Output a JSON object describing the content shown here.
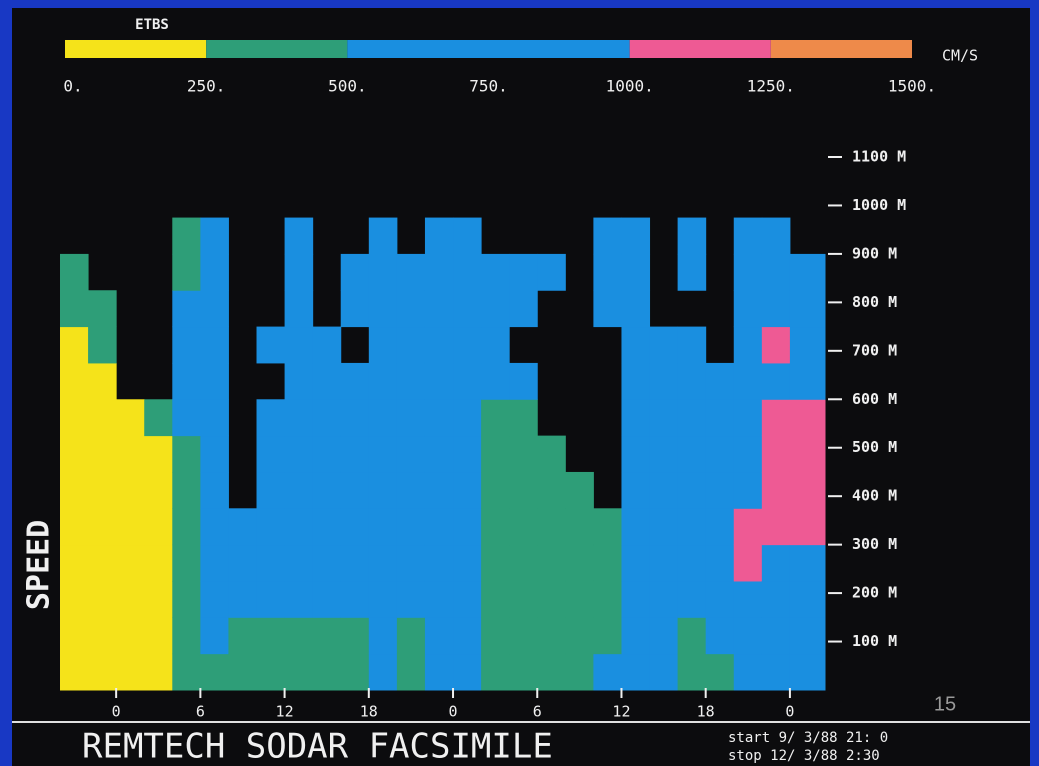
{
  "chart_data": {
    "type": "heatmap",
    "colorbar": {
      "title": "ETBS",
      "unit": "CM/S",
      "bounds": [
        0,
        250,
        500,
        1000,
        1250,
        1500
      ],
      "colors": [
        "#f5e31a",
        "#2e9e78",
        "#1a8fe0",
        "#ee5a94",
        "#ee8a4a"
      ],
      "ticks": [
        {
          "value": 0,
          "label": "0."
        },
        {
          "value": 250,
          "label": "250."
        },
        {
          "value": 500,
          "label": "500."
        },
        {
          "value": 750,
          "label": "750."
        },
        {
          "value": 1000,
          "label": "1000."
        },
        {
          "value": 1250,
          "label": "1250."
        },
        {
          "value": 1500,
          "label": "1500."
        }
      ]
    },
    "ylabel": "SPEED",
    "title": "REMTECH SODAR FACSIMILE",
    "start_label": "start  9/ 3/88 21: 0",
    "stop_label": "stop  12/ 3/88  2:30",
    "slide_number": "15",
    "xlim": [
      -4,
      50.5
    ],
    "xticks": [
      0,
      6,
      12,
      18,
      {
        "value": 24,
        "label": "0"
      },
      {
        "value": 30,
        "label": "6"
      },
      {
        "value": 36,
        "label": "12"
      },
      {
        "value": 42,
        "label": "18"
      },
      {
        "value": 48,
        "label": "0"
      }
    ],
    "ylim": [
      0,
      1100
    ],
    "yticks": [
      {
        "value": 100,
        "label": "100 M"
      },
      {
        "value": 200,
        "label": "200 M"
      },
      {
        "value": 300,
        "label": "300 M"
      },
      {
        "value": 400,
        "label": "400 M"
      },
      {
        "value": 500,
        "label": "500 M"
      },
      {
        "value": 600,
        "label": "600 M"
      },
      {
        "value": 700,
        "label": "700 M"
      },
      {
        "value": 800,
        "label": "800 M"
      },
      {
        "value": 900,
        "label": "900 M"
      },
      {
        "value": 1000,
        "label": "1000 M"
      },
      {
        "value": 1100,
        "label": "1100 M"
      }
    ],
    "x": [
      -4,
      -2,
      0,
      2,
      4,
      6,
      8,
      10,
      12,
      14,
      16,
      18,
      20,
      22,
      24,
      26,
      28,
      30,
      32,
      34,
      36,
      38,
      40,
      42,
      44,
      46,
      48
    ],
    "y": [
      0,
      75,
      150,
      225,
      300,
      375,
      450,
      525,
      600,
      675,
      750,
      825,
      900,
      975
    ],
    "z": [
      [
        125,
        125,
        125,
        125,
        125,
        125,
        125,
        125,
        125,
        125,
        375,
        375,
        null,
        null
      ],
      [
        125,
        125,
        125,
        125,
        125,
        125,
        125,
        125,
        125,
        375,
        375,
        null,
        null,
        null
      ],
      [
        125,
        125,
        125,
        125,
        125,
        125,
        125,
        125,
        null,
        null,
        null,
        null,
        null,
        null
      ],
      [
        125,
        125,
        125,
        125,
        125,
        125,
        125,
        375,
        null,
        null,
        null,
        null,
        null,
        null
      ],
      [
        375,
        375,
        375,
        375,
        375,
        375,
        375,
        750,
        750,
        750,
        750,
        375,
        375,
        null
      ],
      [
        375,
        750,
        750,
        750,
        750,
        750,
        750,
        750,
        750,
        750,
        750,
        750,
        750,
        null
      ],
      [
        375,
        375,
        750,
        750,
        750,
        null,
        null,
        null,
        null,
        null,
        null,
        null,
        null,
        null
      ],
      [
        375,
        375,
        750,
        750,
        750,
        750,
        750,
        750,
        null,
        750,
        null,
        null,
        null,
        null
      ],
      [
        375,
        375,
        750,
        750,
        750,
        750,
        750,
        750,
        750,
        750,
        750,
        750,
        750,
        null
      ],
      [
        375,
        375,
        750,
        750,
        750,
        750,
        750,
        750,
        750,
        750,
        null,
        null,
        null,
        null
      ],
      [
        375,
        375,
        750,
        750,
        750,
        750,
        750,
        750,
        750,
        null,
        750,
        750,
        null,
        null
      ],
      [
        750,
        750,
        750,
        750,
        750,
        750,
        750,
        750,
        750,
        750,
        750,
        750,
        750,
        null
      ],
      [
        375,
        375,
        750,
        750,
        750,
        750,
        750,
        750,
        750,
        750,
        750,
        750,
        null,
        null
      ],
      [
        750,
        750,
        750,
        750,
        750,
        750,
        750,
        750,
        750,
        750,
        750,
        750,
        750,
        null
      ],
      [
        750,
        750,
        750,
        750,
        750,
        750,
        750,
        750,
        750,
        750,
        750,
        750,
        750,
        null
      ],
      [
        375,
        375,
        375,
        375,
        375,
        375,
        375,
        375,
        750,
        750,
        750,
        750,
        null,
        null
      ],
      [
        375,
        375,
        375,
        375,
        375,
        375,
        375,
        375,
        750,
        null,
        750,
        750,
        null,
        null
      ],
      [
        375,
        375,
        375,
        375,
        375,
        375,
        375,
        null,
        null,
        null,
        null,
        750,
        null,
        null
      ],
      [
        375,
        375,
        375,
        375,
        375,
        375,
        null,
        null,
        null,
        null,
        null,
        null,
        null,
        null
      ],
      [
        750,
        375,
        375,
        375,
        375,
        null,
        null,
        null,
        null,
        null,
        750,
        750,
        750,
        null
      ],
      [
        750,
        750,
        750,
        750,
        750,
        750,
        750,
        750,
        750,
        750,
        750,
        750,
        750,
        null
      ],
      [
        750,
        750,
        750,
        750,
        750,
        750,
        750,
        750,
        750,
        750,
        null,
        null,
        null,
        null
      ],
      [
        375,
        375,
        750,
        750,
        750,
        750,
        750,
        750,
        750,
        750,
        null,
        750,
        750,
        null
      ],
      [
        375,
        750,
        750,
        750,
        750,
        750,
        750,
        750,
        750,
        null,
        null,
        null,
        null,
        null
      ],
      [
        750,
        750,
        750,
        1125,
        1125,
        750,
        750,
        750,
        750,
        750,
        750,
        750,
        750,
        null
      ],
      [
        750,
        750,
        750,
        750,
        1125,
        1125,
        1125,
        1125,
        750,
        1125,
        750,
        750,
        750,
        null
      ],
      [
        750,
        750,
        750,
        750,
        1125,
        1125,
        1125,
        1125,
        750,
        750,
        750,
        750,
        null,
        null
      ]
    ]
  }
}
